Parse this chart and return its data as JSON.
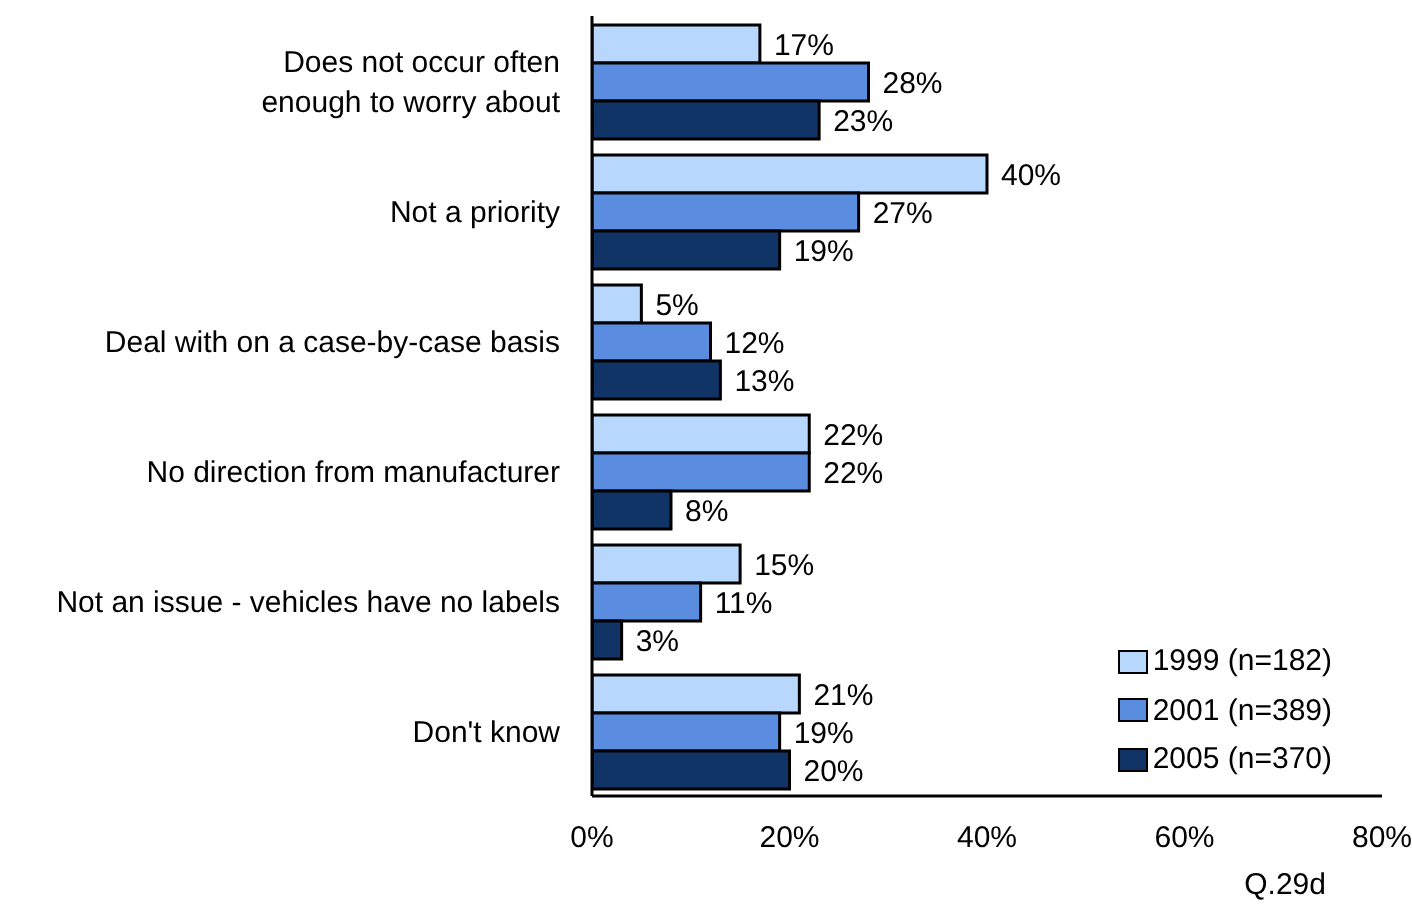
{
  "chart_data": {
    "type": "bar",
    "orientation": "horizontal",
    "categories": [
      "Does not occur often enough to worry about",
      "Not a priority",
      "Deal with on a case-by-case basis",
      "No direction from manufacturer",
      "Not an issue - vehicles have no labels",
      "Don't know"
    ],
    "series": [
      {
        "name": "1999 (n=182)",
        "color": "#b7d7fc",
        "values": [
          17,
          40,
          5,
          22,
          15,
          21
        ],
        "value_labels": [
          "17%",
          "40%",
          "5%",
          "22%",
          "15%",
          "21%"
        ]
      },
      {
        "name": "2001 (n=389)",
        "color": "#5a8ce0",
        "values": [
          28,
          27,
          12,
          22,
          11,
          19
        ],
        "value_labels": [
          "28%",
          "27%",
          "12%",
          "22%",
          "11%",
          "19%"
        ]
      },
      {
        "name": "2005 (n=370)",
        "color": "#113467",
        "values": [
          23,
          19,
          13,
          8,
          3,
          20
        ],
        "value_labels": [
          "23%",
          "19%",
          "13%",
          "8%",
          "3%",
          "20%"
        ]
      }
    ],
    "xlim": [
      0,
      80
    ],
    "xticks": [
      {
        "value": 0,
        "label": "0%"
      },
      {
        "value": 20,
        "label": "20%"
      },
      {
        "value": 40,
        "label": "40%"
      },
      {
        "value": 60,
        "label": "60%"
      },
      {
        "value": 80,
        "label": "80%"
      }
    ],
    "legend": "bottom right",
    "annotations": [
      "Q.29d"
    ]
  }
}
